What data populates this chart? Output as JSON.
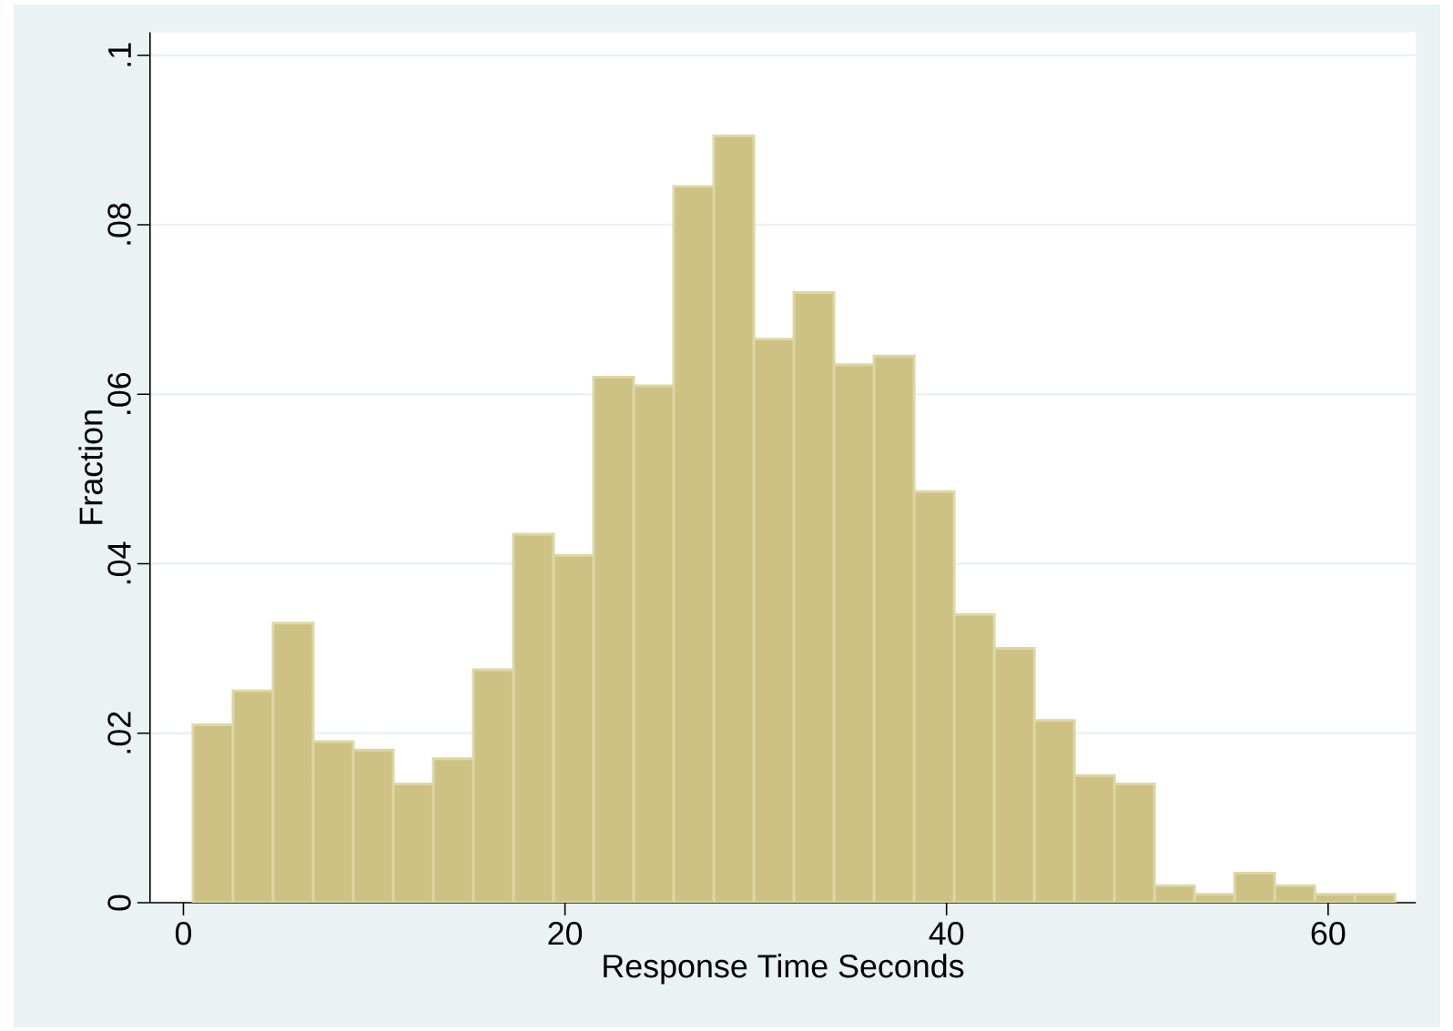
{
  "chart_data": {
    "type": "histogram",
    "xlabel": "Response Time Seconds",
    "ylabel": "Fraction",
    "bins": [
      0.5,
      2.6,
      4.7,
      6.8,
      8.9,
      11.0,
      13.1,
      15.2,
      17.3,
      19.4,
      21.5,
      23.6,
      25.7,
      27.8,
      29.9,
      32.0,
      34.1,
      36.2,
      38.3,
      40.4,
      42.5,
      44.6,
      46.7,
      48.8,
      50.9,
      53.0,
      55.1,
      57.2,
      59.3,
      61.4,
      63.5
    ],
    "values": [
      0.021,
      0.025,
      0.033,
      0.019,
      0.018,
      0.014,
      0.017,
      0.0275,
      0.0435,
      0.041,
      0.062,
      0.061,
      0.0845,
      0.0905,
      0.0665,
      0.072,
      0.0635,
      0.0645,
      0.0485,
      0.034,
      0.03,
      0.0215,
      0.015,
      0.014,
      0.002,
      0.001,
      0.0035,
      0.002,
      0.001,
      0.001
    ],
    "color": "#cdc283",
    "xlim": [
      -1.75,
      64.6
    ],
    "ylim": [
      0,
      0.1027
    ],
    "xticks": [
      0,
      20,
      40,
      60
    ],
    "yticks": [
      {
        "value": 0,
        "label": "0"
      },
      {
        "value": 0.02,
        "label": ".02"
      },
      {
        "value": 0.04,
        "label": ".04"
      },
      {
        "value": 0.06,
        "label": ".06"
      },
      {
        "value": 0.08,
        "label": ".08"
      },
      {
        "value": 0.1,
        "label": ".1"
      }
    ],
    "grid": "y"
  }
}
